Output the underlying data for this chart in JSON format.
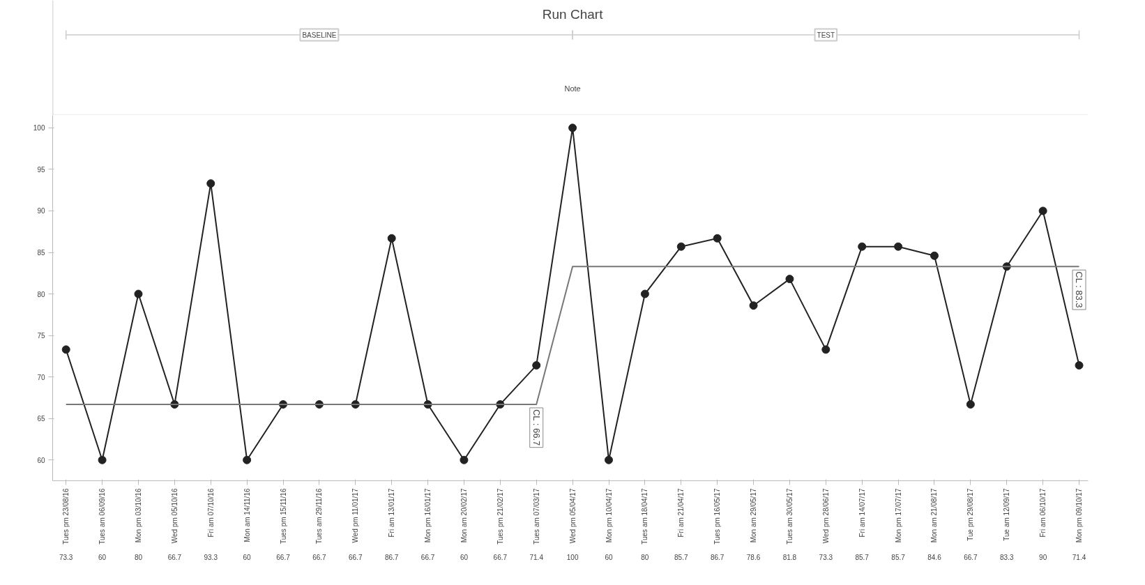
{
  "chart_data": {
    "type": "line",
    "title": "Run Chart",
    "categories": [
      "Tues pm 23/08/16",
      "Tues am 06/09/16",
      "Mon pm 03/10/16",
      "Wed pm 05/10/16",
      "Fri am 07/10/16",
      "Mon am 14/11/16",
      "Tues pm 15/11/16",
      "Tues am 29/11/16",
      "Wed pm 11/01/17",
      "Fri am 13/01/17",
      "Mon pm 16/01/17",
      "Mon am 20/02/17",
      "Tues pm 21/02/17",
      "Tues am 07/03/17",
      "Wed pm 05/04/17",
      "Mon pm 10/04/17",
      "Tues am 18/04/17",
      "Fri am 21/04/17",
      "Tues pm 16/05/17",
      "Mon am 29/05/17",
      "Tues am 30/05/17",
      "Wed pm 28/06/17",
      "Fri am 14/07/17",
      "Mon pm 17/07/17",
      "Mon am 21/08/17",
      "Tue pm 29/08/17",
      "Tue am 12/09/17",
      "Fri am 06/10/17",
      "Mon pm 09/10/17"
    ],
    "series": [
      {
        "color": "#222222",
        "marker": "circle",
        "values": [
          73.3,
          60,
          80,
          66.7,
          93.3,
          60,
          66.7,
          66.7,
          66.7,
          86.7,
          66.7,
          60,
          66.7,
          71.4,
          100,
          60,
          80,
          85.7,
          86.7,
          78.6,
          81.8,
          73.3,
          85.7,
          85.7,
          84.6,
          66.7,
          83.3,
          90,
          71.4
        ],
        "value_labels": [
          "73.3",
          "60",
          "80",
          "66.7",
          "93.3",
          "60",
          "66.7",
          "66.7",
          "66.7",
          "86.7",
          "66.7",
          "60",
          "66.7",
          "71.4",
          "100",
          "60",
          "80",
          "85.7",
          "86.7",
          "78.6",
          "81.8",
          "73.3",
          "85.7",
          "85.7",
          "84.6",
          "66.7",
          "83.3",
          "90",
          "71.4"
        ]
      },
      {
        "color": "#777777",
        "marker": "none",
        "values": [
          66.7,
          66.7,
          66.7,
          66.7,
          66.7,
          66.7,
          66.7,
          66.7,
          66.7,
          66.7,
          66.7,
          66.7,
          66.7,
          66.7,
          83.3,
          83.3,
          83.3,
          83.3,
          83.3,
          83.3,
          83.3,
          83.3,
          83.3,
          83.3,
          83.3,
          83.3,
          83.3,
          83.3,
          83.3
        ],
        "value_labels": [
          null,
          null,
          null,
          null,
          null,
          null,
          null,
          null,
          null,
          null,
          null,
          null,
          null,
          "CL : 66.7",
          null,
          null,
          null,
          null,
          null,
          null,
          null,
          null,
          null,
          null,
          null,
          null,
          null,
          null,
          "CL : 83.3"
        ]
      }
    ],
    "ylim": [
      57.5,
      101.5
    ],
    "yticks": [
      60,
      65,
      70,
      75,
      80,
      85,
      90,
      95,
      100
    ],
    "grid": false,
    "annotations": [
      "BASELINE",
      "TEST",
      "Note"
    ]
  }
}
